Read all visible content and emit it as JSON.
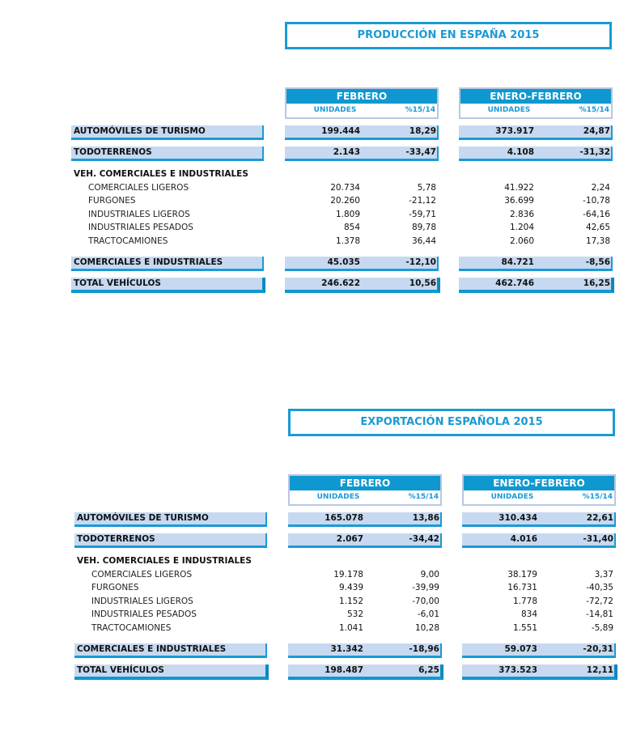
{
  "columns": {
    "group1": "FEBRERO",
    "group2": "ENERO-FEBRERO",
    "units": "UNIDADES",
    "pct": "%15/14"
  },
  "accent_color": "#1a9ad6",
  "sections": [
    {
      "title": "PRODUCCIÓN EN ESPAÑA 2015",
      "rows": [
        {
          "label": "AUTOMÓVILES DE TURISMO",
          "type": "bar",
          "feb_u": "199.444",
          "feb_p": "18,29",
          "ef_u": "373.917",
          "ef_p": "24,87"
        },
        {
          "label": "TODOTERRENOS",
          "type": "bar",
          "feb_u": "2.143",
          "feb_p": "-33,47",
          "ef_u": "4.108",
          "ef_p": "-31,32"
        },
        {
          "label": "VEH. COMERCIALES E INDUSTRIALES",
          "type": "header"
        },
        {
          "label": "COMERCIALES LIGEROS",
          "type": "sub",
          "feb_u": "20.734",
          "feb_p": "5,78",
          "ef_u": "41.922",
          "ef_p": "2,24"
        },
        {
          "label": "FURGONES",
          "type": "sub",
          "feb_u": "20.260",
          "feb_p": "-21,12",
          "ef_u": "36.699",
          "ef_p": "-10,78"
        },
        {
          "label": "INDUSTRIALES LIGEROS",
          "type": "sub",
          "feb_u": "1.809",
          "feb_p": "-59,71",
          "ef_u": "2.836",
          "ef_p": "-64,16"
        },
        {
          "label": "INDUSTRIALES PESADOS",
          "type": "sub",
          "feb_u": "854",
          "feb_p": "89,78",
          "ef_u": "1.204",
          "ef_p": "42,65"
        },
        {
          "label": "TRACTOCAMIONES",
          "type": "sub",
          "feb_u": "1.378",
          "feb_p": "36,44",
          "ef_u": "2.060",
          "ef_p": "17,38"
        },
        {
          "label": "COMERCIALES E INDUSTRIALES",
          "type": "bar",
          "feb_u": "45.035",
          "feb_p": "-12,10",
          "ef_u": "84.721",
          "ef_p": "-8,56"
        },
        {
          "label": "TOTAL VEHÍCULOS",
          "type": "total",
          "feb_u": "246.622",
          "feb_p": "10,56",
          "ef_u": "462.746",
          "ef_p": "16,25"
        }
      ]
    },
    {
      "title": "EXPORTACIÓN ESPAÑOLA 2015",
      "rows": [
        {
          "label": "AUTOMÓVILES DE TURISMO",
          "type": "bar",
          "feb_u": "165.078",
          "feb_p": "13,86",
          "ef_u": "310.434",
          "ef_p": "22,61"
        },
        {
          "label": "TODOTERRENOS",
          "type": "bar",
          "feb_u": "2.067",
          "feb_p": "-34,42",
          "ef_u": "4.016",
          "ef_p": "-31,40"
        },
        {
          "label": "VEH. COMERCIALES E INDUSTRIALES",
          "type": "header"
        },
        {
          "label": "COMERCIALES LIGEROS",
          "type": "sub",
          "feb_u": "19.178",
          "feb_p": "9,00",
          "ef_u": "38.179",
          "ef_p": "3,37"
        },
        {
          "label": "FURGONES",
          "type": "sub",
          "feb_u": "9.439",
          "feb_p": "-39,99",
          "ef_u": "16.731",
          "ef_p": "-40,35"
        },
        {
          "label": "INDUSTRIALES LIGEROS",
          "type": "sub",
          "feb_u": "1.152",
          "feb_p": "-70,00",
          "ef_u": "1.778",
          "ef_p": "-72,72"
        },
        {
          "label": "INDUSTRIALES PESADOS",
          "type": "sub",
          "feb_u": "532",
          "feb_p": "-6,01",
          "ef_u": "834",
          "ef_p": "-14,81"
        },
        {
          "label": "TRACTOCAMIONES",
          "type": "sub",
          "feb_u": "1.041",
          "feb_p": "10,28",
          "ef_u": "1.551",
          "ef_p": "-5,89"
        },
        {
          "label": "COMERCIALES E INDUSTRIALES",
          "type": "bar",
          "feb_u": "31.342",
          "feb_p": "-18,96",
          "ef_u": "59.073",
          "ef_p": "-20,31"
        },
        {
          "label": "TOTAL VEHÍCULOS",
          "type": "total",
          "feb_u": "198.487",
          "feb_p": "6,25",
          "ef_u": "373.523",
          "ef_p": "12,11"
        }
      ]
    }
  ]
}
